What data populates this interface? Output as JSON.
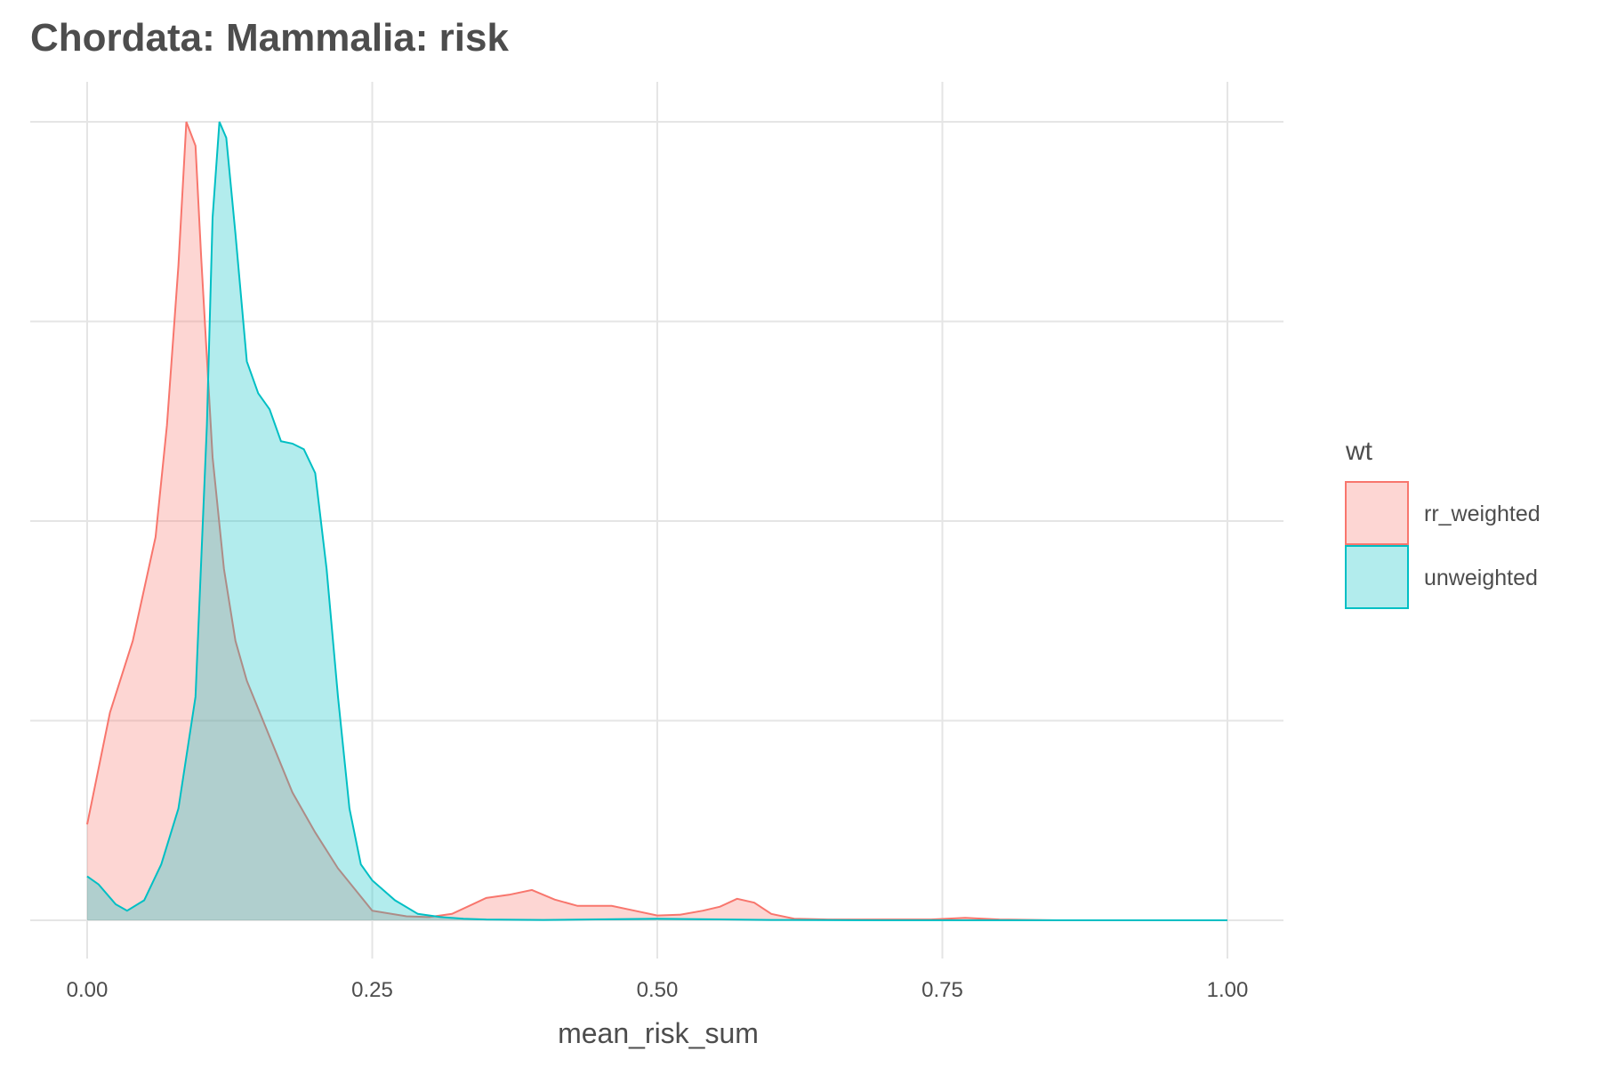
{
  "chart_data": {
    "type": "area",
    "chart_kind": "density",
    "title": "Chordata: Mammalia: risk",
    "xlabel": "mean_risk_sum",
    "ylabel": "",
    "xlim": [
      0,
      1
    ],
    "ylim": [
      0,
      1
    ],
    "x_ticks": [
      "0.00",
      "0.25",
      "0.50",
      "0.75",
      "1.00"
    ],
    "y_ticks_shown": false,
    "grid": true,
    "legend": {
      "title": "wt",
      "position": "right"
    },
    "series": [
      {
        "name": "rr_weighted",
        "color": "#F8766D",
        "fill": "#F8766D",
        "fill_opacity": 0.3,
        "x": [
          0.0,
          0.02,
          0.04,
          0.06,
          0.07,
          0.08,
          0.087,
          0.095,
          0.1,
          0.11,
          0.12,
          0.13,
          0.14,
          0.16,
          0.18,
          0.2,
          0.22,
          0.25,
          0.28,
          0.3,
          0.32,
          0.35,
          0.37,
          0.39,
          0.41,
          0.43,
          0.46,
          0.48,
          0.5,
          0.52,
          0.54,
          0.555,
          0.57,
          0.585,
          0.6,
          0.62,
          0.65,
          0.7,
          0.74,
          0.77,
          0.8,
          0.85,
          0.9,
          0.95,
          1.0
        ],
        "y": [
          0.12,
          0.26,
          0.35,
          0.48,
          0.62,
          0.82,
          1.0,
          0.97,
          0.83,
          0.58,
          0.44,
          0.35,
          0.3,
          0.23,
          0.16,
          0.11,
          0.065,
          0.012,
          0.005,
          0.004,
          0.008,
          0.028,
          0.032,
          0.038,
          0.026,
          0.018,
          0.018,
          0.012,
          0.006,
          0.007,
          0.012,
          0.017,
          0.027,
          0.022,
          0.008,
          0.002,
          0.001,
          0.001,
          0.001,
          0.003,
          0.001,
          0.0,
          0.0,
          0.0,
          0.0
        ]
      },
      {
        "name": "unweighted",
        "color": "#00BFC4",
        "fill": "#00BFC4",
        "fill_opacity": 0.3,
        "x": [
          0.0,
          0.01,
          0.025,
          0.035,
          0.05,
          0.065,
          0.08,
          0.095,
          0.105,
          0.11,
          0.116,
          0.122,
          0.13,
          0.14,
          0.15,
          0.16,
          0.17,
          0.18,
          0.19,
          0.2,
          0.21,
          0.22,
          0.23,
          0.24,
          0.25,
          0.27,
          0.29,
          0.31,
          0.33,
          0.35,
          0.4,
          0.5,
          0.6,
          0.7,
          0.8,
          0.9,
          1.0
        ],
        "y": [
          0.055,
          0.045,
          0.02,
          0.012,
          0.025,
          0.07,
          0.14,
          0.28,
          0.62,
          0.88,
          1.0,
          0.98,
          0.86,
          0.7,
          0.66,
          0.64,
          0.6,
          0.597,
          0.59,
          0.56,
          0.44,
          0.28,
          0.14,
          0.07,
          0.05,
          0.025,
          0.008,
          0.004,
          0.002,
          0.001,
          0.0005,
          0.002,
          0.0005,
          0.0,
          0.0,
          0.0,
          0.0
        ]
      }
    ]
  }
}
